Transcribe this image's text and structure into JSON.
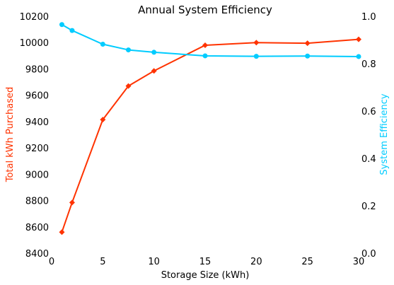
{
  "chart_data": {
    "type": "line",
    "title": "Annual System Efficiency",
    "xlabel": "Storage Size (kWh)",
    "xlim": [
      0,
      30
    ],
    "x_ticks": [
      0,
      5,
      10,
      15,
      20,
      25,
      30
    ],
    "grid": false,
    "legend": "none",
    "x": [
      1,
      2,
      5,
      7.5,
      10,
      15,
      20,
      25,
      30
    ],
    "series": [
      {
        "name": "Total kWh Purchased",
        "axis": "left",
        "color": "#FF3300",
        "marker": "diamond",
        "values": [
          8560,
          8785,
          9415,
          9670,
          9785,
          9980,
          10000,
          9995,
          10025
        ]
      },
      {
        "name": "System Efficiency",
        "axis": "right",
        "color": "#00CCFF",
        "marker": "circle",
        "values": [
          0.965,
          0.94,
          0.882,
          0.858,
          0.848,
          0.833,
          0.831,
          0.832,
          0.83
        ]
      }
    ],
    "y_left": {
      "label": "Total kWh Purchased",
      "color": "#FF3300",
      "ylim": [
        8400,
        10200
      ],
      "ticks": [
        8400,
        8600,
        8800,
        9000,
        9200,
        9400,
        9600,
        9800,
        10000,
        10200
      ]
    },
    "y_right": {
      "label": "System Efficiency",
      "color": "#00CCFF",
      "ylim": [
        0,
        1
      ],
      "ticks": [
        "0.0",
        "0.2",
        "0.4",
        "0.6",
        "0.8",
        "1.0"
      ]
    }
  }
}
